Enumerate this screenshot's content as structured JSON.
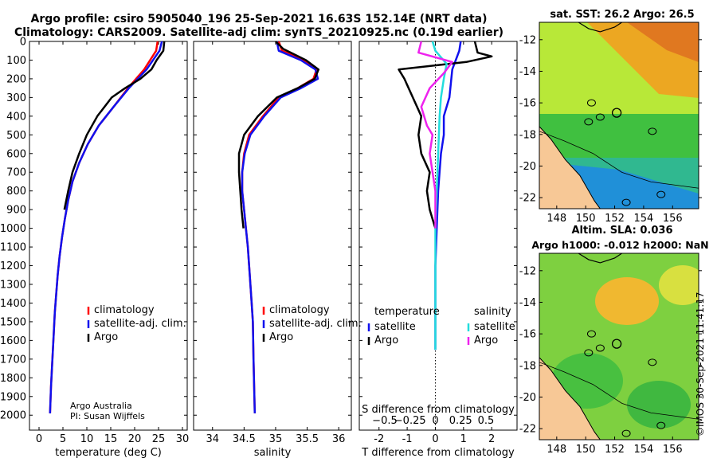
{
  "header": {
    "line1": "Argo profile: csiro 5905040_196 25-Sep-2021 16.63S 152.14E (NRT data)",
    "line2": "Climatology: CARS2009. Satellite-adj clim: synTS_20210925.nc (0.19d earlier)"
  },
  "credits": {
    "line1": "Argo Australia",
    "line2": "PI: Susan Wijffels"
  },
  "stamp": "©IMOS 30-Sep-2021 11:41:17",
  "colors": {
    "climatology": "#ff0000",
    "satellite": "#1010ee",
    "argo": "#000000",
    "sal_satellite": "#22dddd",
    "sal_argo": "#ee22ee"
  },
  "chart_data": [
    {
      "type": "line",
      "title": "",
      "xlabel": "temperature (deg C)",
      "ylabel": "",
      "xlim": [
        -2,
        31
      ],
      "ylim": [
        2080,
        0
      ],
      "xticks": [
        0,
        5,
        10,
        15,
        20,
        25,
        30
      ],
      "yticks": [
        0,
        100,
        200,
        300,
        400,
        500,
        600,
        700,
        800,
        900,
        1000,
        1100,
        1200,
        1300,
        1400,
        1500,
        1600,
        1700,
        1800,
        1900,
        2000
      ],
      "legend": [
        "climatology",
        "satellite-adj. clim.",
        "Argo"
      ],
      "series": [
        {
          "name": "climatology",
          "color": "#ff0000",
          "x": [
            24.8,
            24.5,
            22,
            18.6,
            15.6,
            12.5,
            10.2,
            8.4,
            7.0,
            6.1,
            5.4,
            4.8,
            4.3,
            3.9,
            3.6,
            3.3,
            3.1,
            2.9,
            2.7,
            2.5,
            2.3
          ],
          "y": [
            0,
            50,
            150,
            250,
            350,
            450,
            550,
            650,
            750,
            850,
            950,
            1050,
            1150,
            1250,
            1350,
            1450,
            1550,
            1650,
            1750,
            1850,
            1990
          ]
        },
        {
          "name": "satellite-adj. clim.",
          "color": "#1010ee",
          "x": [
            25.7,
            25.2,
            22.5,
            18.8,
            15.6,
            12.5,
            10.2,
            8.4,
            7.0,
            6.1,
            5.4,
            4.8,
            4.3,
            3.9,
            3.6,
            3.3,
            3.1,
            2.9,
            2.7,
            2.5,
            2.3
          ],
          "y": [
            0,
            50,
            150,
            250,
            350,
            450,
            550,
            650,
            750,
            850,
            950,
            1050,
            1150,
            1250,
            1350,
            1450,
            1550,
            1650,
            1750,
            1850,
            1990
          ]
        },
        {
          "name": "Argo",
          "color": "#000000",
          "x": [
            26.2,
            26,
            24.6,
            23.5,
            21.2,
            18,
            15.2,
            12.2,
            10,
            8.4,
            7,
            6.1,
            5.3
          ],
          "y": [
            0,
            50,
            100,
            150,
            200,
            250,
            300,
            400,
            500,
            600,
            700,
            800,
            900
          ]
        }
      ]
    },
    {
      "type": "line",
      "title": "",
      "xlabel": "salinity",
      "ylabel": "",
      "xlim": [
        33.7,
        36.2
      ],
      "ylim": [
        2080,
        0
      ],
      "xticks": [
        34,
        34.5,
        35,
        35.5,
        36
      ],
      "legend": [
        "climatology",
        "satellite-adj. clim.",
        "Argo"
      ],
      "series": [
        {
          "name": "climatology",
          "color": "#ff0000",
          "x": [
            35.05,
            35.1,
            35.45,
            35.65,
            35.6,
            35.35,
            35.05,
            34.8,
            34.58,
            34.5,
            34.47,
            34.47,
            34.5,
            34.53,
            34.56,
            34.58,
            34.6,
            34.62,
            34.64,
            34.65,
            34.67
          ],
          "y": [
            0,
            50,
            100,
            150,
            200,
            250,
            300,
            400,
            500,
            600,
            700,
            800,
            900,
            1000,
            1100,
            1200,
            1300,
            1400,
            1500,
            1700,
            1990
          ]
        },
        {
          "name": "satellite-adj. clim.",
          "color": "#1010ee",
          "x": [
            35.02,
            35.05,
            35.4,
            35.63,
            35.67,
            35.4,
            35.08,
            34.82,
            34.6,
            34.51,
            34.47,
            34.47,
            34.5,
            34.53,
            34.56,
            34.58,
            34.6,
            34.62,
            34.64,
            34.65,
            34.67
          ],
          "y": [
            0,
            50,
            100,
            150,
            200,
            250,
            300,
            400,
            500,
            600,
            700,
            800,
            900,
            1000,
            1100,
            1200,
            1300,
            1400,
            1500,
            1700,
            1990
          ]
        },
        {
          "name": "Argo",
          "color": "#000000",
          "x": [
            35.0,
            35.12,
            35.48,
            35.68,
            35.62,
            35.35,
            35.02,
            34.72,
            34.5,
            34.42,
            34.42,
            34.44,
            34.46,
            34.49
          ],
          "y": [
            0,
            40,
            100,
            150,
            200,
            250,
            300,
            400,
            500,
            600,
            700,
            800,
            900,
            1000
          ]
        }
      ]
    },
    {
      "type": "line",
      "title": "",
      "xlabel": "T difference from climatology",
      "xlabel_top": "S difference from climatology",
      "xlim": [
        -2.7,
        2.9
      ],
      "ylim": [
        2080,
        0
      ],
      "xticks": [
        -2,
        -1,
        0,
        1,
        2
      ],
      "xticks_top": [
        -0.5,
        -0.25,
        0,
        0.25,
        0.5
      ],
      "legend_groups": [
        {
          "heading": "temperature",
          "items": [
            "satellite",
            "Argo"
          ]
        },
        {
          "heading": "salinity",
          "items": [
            "satellite",
            "Argo"
          ]
        }
      ],
      "series": [
        {
          "name": "temperature satellite",
          "color": "#1010ee",
          "x": [
            0.9,
            0.85,
            0.6,
            0.5,
            0.3,
            0.3,
            0.2,
            0.1,
            0.05,
            0.0,
            0,
            0
          ],
          "y": [
            0,
            50,
            150,
            300,
            400,
            500,
            600,
            800,
            1000,
            1200,
            1400,
            1650
          ]
        },
        {
          "name": "temperature Argo",
          "color": "#000000",
          "x": [
            1.4,
            1.5,
            2.0,
            1.1,
            -1.3,
            -1.1,
            -0.8,
            -0.5,
            -0.6,
            -0.5,
            -0.2,
            -0.3,
            -0.2,
            -0.1,
            0
          ],
          "y": [
            0,
            60,
            80,
            110,
            150,
            200,
            300,
            400,
            500,
            600,
            700,
            800,
            900,
            950,
            1000
          ]
        },
        {
          "name": "salinity satellite",
          "color": "#22dddd",
          "x": [
            -0.1,
            0,
            0.4,
            0.3,
            0.2,
            0.15,
            0.1,
            0.05,
            0,
            0,
            0
          ],
          "y": [
            0,
            50,
            120,
            200,
            300,
            400,
            600,
            800,
            1000,
            1300,
            1650
          ]
        },
        {
          "name": "salinity Argo",
          "color": "#ee22ee",
          "x": [
            -0.5,
            -0.6,
            0.6,
            0.3,
            -0.2,
            -0.5,
            -0.3,
            -0.1,
            -0.2,
            0,
            0
          ],
          "y": [
            0,
            60,
            110,
            170,
            250,
            350,
            450,
            500,
            600,
            800,
            1000
          ]
        }
      ]
    },
    {
      "type": "heatmap",
      "title": "sat. SST: 26.2 Argo: 26.5",
      "xticks": [
        148,
        150,
        152,
        154,
        156
      ],
      "yticks": [
        -12,
        -14,
        -16,
        -18,
        -20,
        -22
      ],
      "xlim": [
        146.8,
        157.8
      ],
      "ylim": [
        -22.7,
        -10.9
      ],
      "marker": {
        "lon": 152.14,
        "lat": -16.63
      }
    },
    {
      "type": "heatmap",
      "title_line1": "Altim. SLA: 0.036",
      "title_line2": "Argo h1000: -0.012 h2000: NaN",
      "xticks": [
        148,
        150,
        152,
        154,
        156
      ],
      "yticks": [
        -12,
        -14,
        -16,
        -18,
        -20,
        -22
      ],
      "xlim": [
        146.8,
        157.8
      ],
      "ylim": [
        -22.7,
        -10.9
      ],
      "marker": {
        "lon": 152.14,
        "lat": -16.63
      }
    }
  ]
}
